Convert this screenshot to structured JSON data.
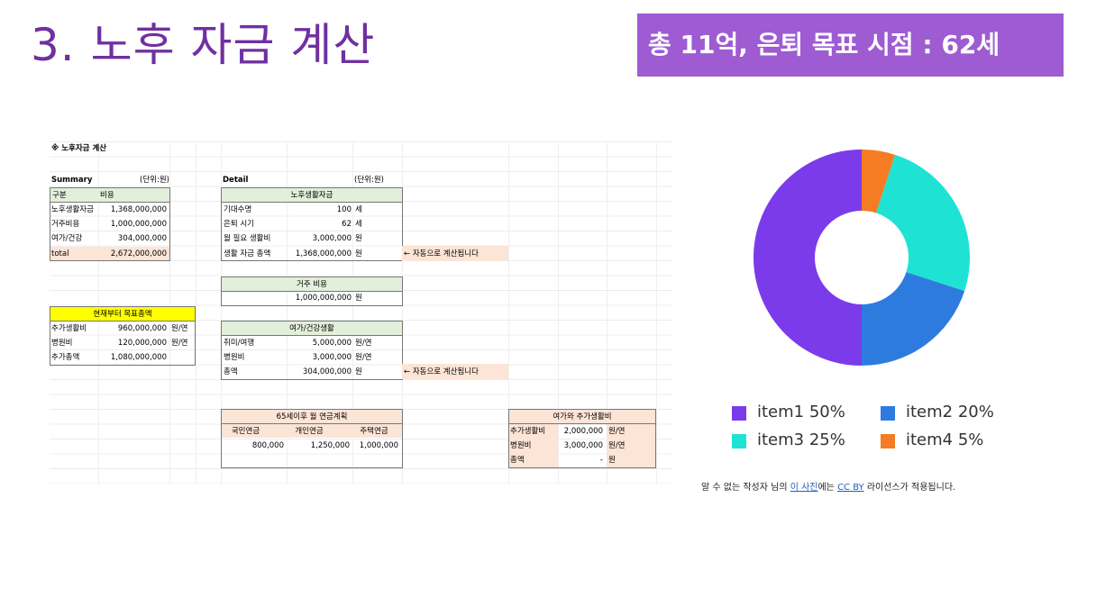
{
  "title": "3. 노후 자금 계산",
  "banner": "총 11억, 은퇴 목표 시점  : 62세",
  "sheet": {
    "heading": "※ 노후자금 계산",
    "summary": {
      "label": "Summary",
      "unit": "(단위:원)",
      "col1": "구분",
      "col2": "비용",
      "rows": [
        {
          "k": "노후생활자금",
          "v": "1,368,000,000"
        },
        {
          "k": "거주비용",
          "v": "1,000,000,000"
        },
        {
          "k": "여가/건강",
          "v": "304,000,000"
        },
        {
          "k": "total",
          "v": "2,672,000,000"
        }
      ]
    },
    "target": {
      "header": "현재부터 목표총액",
      "rows": [
        {
          "k": "추가생활비",
          "v": "960,000,000",
          "u": "원/연"
        },
        {
          "k": "병원비",
          "v": "120,000,000",
          "u": "원/연"
        },
        {
          "k": "추가총액",
          "v": "1,080,000,000",
          "u": ""
        }
      ]
    },
    "detail": {
      "label": "Detail",
      "unit": "(단위:원)",
      "living_header": "노후생활자금",
      "living_rows": [
        {
          "k": "기대수명",
          "v": "100",
          "u": "세"
        },
        {
          "k": "은퇴 시기",
          "v": "62",
          "u": "세"
        },
        {
          "k": "월 필요 생활비",
          "v": "3,000,000",
          "u": "원"
        },
        {
          "k": "생활 자금 총액",
          "v": "1,368,000,000",
          "u": "원"
        }
      ],
      "auto_note": "← 자동으로 계산됩니다",
      "housing_header": "거주 비용",
      "housing_value": "1,000,000,000",
      "housing_unit": "원",
      "leisure_header": "여가/건강생활",
      "leisure_rows": [
        {
          "k": "취미/여행",
          "v": "5,000,000",
          "u": "원/연"
        },
        {
          "k": "병원비",
          "v": "3,000,000",
          "u": "원/연"
        },
        {
          "k": "총액",
          "v": "304,000,000",
          "u": "원"
        }
      ],
      "auto_note2": "← 자동으로 계산됩니다"
    },
    "pension": {
      "header": "65세이후 월 연금계획",
      "cols": [
        "국민연금",
        "개인연금",
        "주택연금"
      ],
      "vals": [
        "800,000",
        "1,250,000",
        "1,000,000"
      ]
    },
    "extra": {
      "header": "여가와 추가생활비",
      "rows": [
        {
          "k": "추가생활비",
          "v": "2,000,000",
          "u": "원/연"
        },
        {
          "k": "병원비",
          "v": "3,000,000",
          "u": "원/연"
        },
        {
          "k": "총액",
          "v": "-",
          "u": "원"
        }
      ]
    }
  },
  "chart_data": {
    "type": "pie",
    "title": "",
    "donut": true,
    "categories": [
      "item1",
      "item2",
      "item3",
      "item4"
    ],
    "values": [
      50,
      20,
      25,
      5
    ],
    "order_clockwise_from_top": [
      "item4",
      "item3",
      "item2",
      "item1"
    ],
    "colors": {
      "item1": "#7b3bea",
      "item2": "#2e7be0",
      "item3": "#1ee3d4",
      "item4": "#f57c22"
    },
    "legend": [
      "item1 50%",
      "item2 20%",
      "item3 25%",
      "item4 5%"
    ],
    "legend_position": "bottom"
  },
  "credit": {
    "prefix": "알 수 없는 작성자 님의 ",
    "link1": "이 사진",
    "middle": "에는 ",
    "link2": "CC BY",
    "suffix": " 라이선스가 적용됩니다."
  }
}
